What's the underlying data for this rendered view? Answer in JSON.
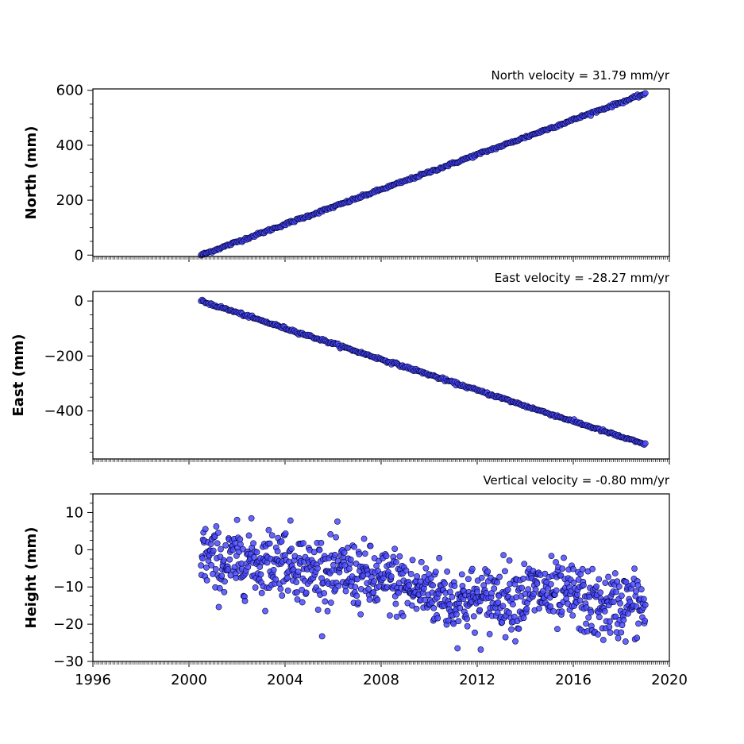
{
  "chart_data": [
    {
      "type": "scatter",
      "panel": "north",
      "ylabel": "North (mm)",
      "annotation": "North velocity = 31.79 mm/yr",
      "xlim": [
        1996,
        2020
      ],
      "ylim": [
        -5,
        605
      ],
      "yticks": [
        0,
        200,
        400,
        600
      ],
      "ytick_labels": [
        "0",
        "200",
        "400",
        "600"
      ],
      "series": [
        {
          "x": [
            2000.5,
            2001.0,
            2002.0,
            2003.0,
            2004.0,
            2005.0,
            2006.0,
            2007.0,
            2008.0,
            2009.0,
            2010.0,
            2011.0,
            2012.0,
            2013.0,
            2014.0,
            2015.0,
            2016.0,
            2017.0,
            2018.0,
            2019.0
          ],
          "y": [
            0,
            16,
            48,
            80,
            112,
            144,
            175,
            207,
            239,
            270,
            302,
            334,
            366,
            397,
            429,
            461,
            493,
            525,
            556,
            588
          ]
        }
      ],
      "marker_color": "#4b4bff",
      "marker_edge": "#000033",
      "grid": false
    },
    {
      "type": "scatter",
      "panel": "east",
      "ylabel": "East (mm)",
      "annotation": "East velocity = -28.27 mm/yr",
      "xlim": [
        1996,
        2020
      ],
      "ylim": [
        -575,
        35
      ],
      "yticks": [
        0,
        -200,
        -400
      ],
      "ytick_labels": [
        "0",
        "−200",
        "−400"
      ],
      "series": [
        {
          "x": [
            2000.5,
            2001.0,
            2002.0,
            2003.0,
            2004.0,
            2005.0,
            2006.0,
            2007.0,
            2008.0,
            2009.0,
            2010.0,
            2011.0,
            2012.0,
            2013.0,
            2014.0,
            2015.0,
            2016.0,
            2017.0,
            2018.0,
            2019.0
          ],
          "y": [
            0,
            -14,
            -42,
            -71,
            -99,
            -127,
            -155,
            -184,
            -212,
            -240,
            -268,
            -297,
            -325,
            -353,
            -382,
            -410,
            -438,
            -466,
            -495,
            -523
          ]
        }
      ],
      "marker_color": "#4b4bff",
      "marker_edge": "#000033",
      "grid": false
    },
    {
      "type": "scatter",
      "panel": "height",
      "ylabel": "Height (mm)",
      "annotation": "Vertical velocity = -0.80 mm/yr",
      "xlim": [
        1996,
        2020
      ],
      "ylim": [
        -30,
        15
      ],
      "yticks": [
        10,
        0,
        -10,
        -20,
        -30
      ],
      "ytick_labels": [
        "10",
        "0",
        "−10",
        "−20",
        "−30"
      ],
      "xticks": [
        1996,
        2000,
        2004,
        2008,
        2012,
        2016,
        2020
      ],
      "xtick_labels": [
        "1996",
        "2000",
        "2004",
        "2008",
        "2012",
        "2016",
        "2020"
      ],
      "series": [
        {
          "x": [
            2000.5,
            2001.0,
            2001.5,
            2002.0,
            2002.5,
            2003.0,
            2003.5,
            2004.0,
            2004.5,
            2005.0,
            2005.5,
            2006.0,
            2006.5,
            2007.0,
            2007.5,
            2008.0,
            2008.5,
            2009.0,
            2009.5,
            2010.0,
            2010.5,
            2011.0,
            2011.5,
            2012.0,
            2012.5,
            2013.0,
            2013.5,
            2014.0,
            2014.5,
            2015.0,
            2015.5,
            2016.0,
            2016.5,
            2017.0,
            2017.5,
            2018.0,
            2018.5,
            2019.0
          ],
          "y": [
            0,
            -3,
            -4,
            -3,
            -2,
            -4,
            -3,
            -2,
            -4,
            -6,
            -5,
            -7,
            -6,
            -7,
            -8,
            -9,
            -8,
            -10,
            -11,
            -11,
            -12,
            -14,
            -13,
            -14,
            -13,
            -12,
            -13,
            -12,
            -11,
            -12,
            -13,
            -12,
            -14,
            -16,
            -15,
            -15,
            -14,
            -16
          ]
        }
      ],
      "marker_color": "#4b4bff",
      "marker_edge": "#000033",
      "grid": false
    }
  ]
}
